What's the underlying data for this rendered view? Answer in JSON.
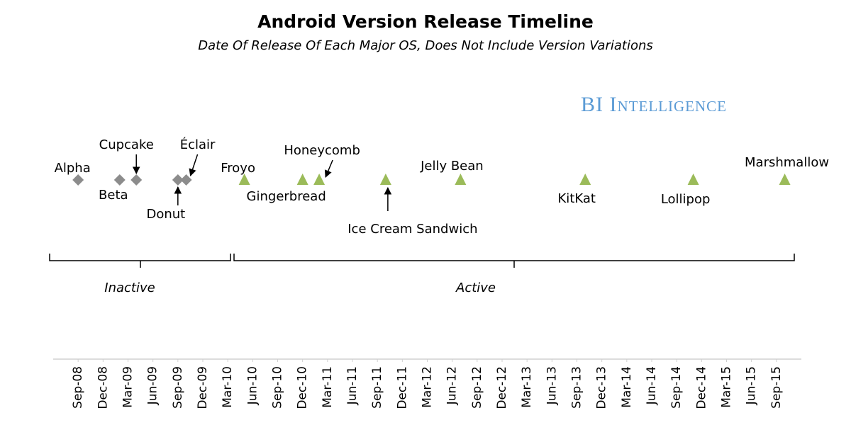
{
  "chart_data": {
    "type": "timeline",
    "title": "Android Version Release Timeline",
    "subtitle": "Date Of Release Of Each Major OS, Does Not Include Version Variations",
    "source": "BI Intelligence",
    "xlim": [
      "2008-06",
      "2015-12"
    ],
    "xticks": [
      {
        "value": "2008-09",
        "label": "Sep-08"
      },
      {
        "value": "2008-12",
        "label": "Dec-08"
      },
      {
        "value": "2009-03",
        "label": "Mar-09"
      },
      {
        "value": "2009-06",
        "label": "Jun-09"
      },
      {
        "value": "2009-09",
        "label": "Sep-09"
      },
      {
        "value": "2009-12",
        "label": "Dec-09"
      },
      {
        "value": "2010-03",
        "label": "Mar-10"
      },
      {
        "value": "2010-06",
        "label": "Jun-10"
      },
      {
        "value": "2010-09",
        "label": "Sep-10"
      },
      {
        "value": "2010-12",
        "label": "Dec-10"
      },
      {
        "value": "2011-03",
        "label": "Mar-11"
      },
      {
        "value": "2011-06",
        "label": "Jun-11"
      },
      {
        "value": "2011-09",
        "label": "Sep-11"
      },
      {
        "value": "2011-12",
        "label": "Dec-11"
      },
      {
        "value": "2012-03",
        "label": "Mar-12"
      },
      {
        "value": "2012-06",
        "label": "Jun-12"
      },
      {
        "value": "2012-09",
        "label": "Sep-12"
      },
      {
        "value": "2012-12",
        "label": "Dec-12"
      },
      {
        "value": "2013-03",
        "label": "Mar-13"
      },
      {
        "value": "2013-06",
        "label": "Jun-13"
      },
      {
        "value": "2013-09",
        "label": "Sep-13"
      },
      {
        "value": "2013-12",
        "label": "Dec-13"
      },
      {
        "value": "2014-03",
        "label": "Mar-14"
      },
      {
        "value": "2014-06",
        "label": "Jun-14"
      },
      {
        "value": "2014-09",
        "label": "Sep-14"
      },
      {
        "value": "2014-12",
        "label": "Dec-14"
      },
      {
        "value": "2015-03",
        "label": "Mar-15"
      },
      {
        "value": "2015-06",
        "label": "Jun-15"
      },
      {
        "value": "2015-09",
        "label": "Sep-15"
      }
    ],
    "series": [
      {
        "name": "Inactive",
        "color": "#8c8c8c",
        "marker": "diamond",
        "labels": [
          "Alpha",
          "Beta",
          "Cupcake",
          "Donut",
          "Éclair"
        ],
        "x": [
          "2008-09",
          "2009-02",
          "2009-04",
          "2009-09",
          "2009-10"
        ]
      },
      {
        "name": "Active",
        "color": "#9bbb59",
        "marker": "triangle",
        "labels": [
          "Froyo",
          "Gingerbread",
          "Honeycomb",
          "Ice Cream Sandwich",
          "Jelly Bean",
          "KitKat",
          "Lollipop",
          "Marshmallow"
        ],
        "x": [
          "2010-05",
          "2010-12",
          "2011-02",
          "2011-10",
          "2012-07",
          "2013-10",
          "2014-11",
          "2015-10"
        ]
      }
    ]
  }
}
